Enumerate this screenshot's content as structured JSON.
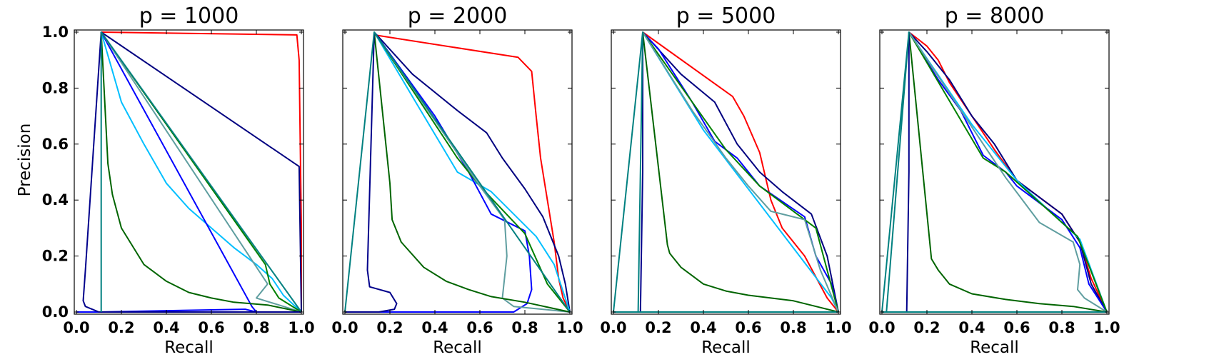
{
  "chart_data": [
    {
      "type": "line",
      "title": "p = 1000",
      "xlabel": "Recall",
      "ylabel": "Precision",
      "xlim": [
        0,
        1
      ],
      "ylim": [
        0,
        1
      ],
      "xticks": [
        "0.0",
        "0.2",
        "0.4",
        "0.6",
        "0.8",
        "1.0"
      ],
      "yticks": [
        "0.0",
        "0.2",
        "0.4",
        "0.6",
        "0.8",
        "1.0"
      ],
      "series": [
        {
          "color": "#ff0000",
          "x": [
            0.11,
            0.98,
            0.99,
            1.0,
            1.0
          ],
          "y": [
            1.0,
            0.99,
            0.9,
            0.3,
            0.0
          ]
        },
        {
          "color": "#000080",
          "x": [
            0.11,
            0.99,
            1.0
          ],
          "y": [
            1.0,
            0.52,
            0.0
          ]
        },
        {
          "color": "#00bfff",
          "x": [
            0.11,
            0.2,
            0.3,
            0.4,
            0.5,
            0.6,
            0.7,
            0.8,
            0.87,
            0.92,
            1.0
          ],
          "y": [
            1.0,
            0.75,
            0.6,
            0.46,
            0.37,
            0.3,
            0.23,
            0.17,
            0.12,
            0.06,
            0.0
          ]
        },
        {
          "color": "#0000ff",
          "x": [
            0.11,
            0.78,
            0.8,
            0.75,
            0.1,
            0.0
          ],
          "y": [
            1.0,
            0.02,
            0.0,
            0.01,
            0.0,
            0.0
          ]
        },
        {
          "color": "#008000",
          "x": [
            0.11,
            0.84,
            0.86,
            0.9,
            1.0
          ],
          "y": [
            1.0,
            0.17,
            0.1,
            0.05,
            0.0
          ]
        },
        {
          "color": "#5f9ea0",
          "x": [
            0.11,
            0.85,
            0.8,
            0.88,
            1.0
          ],
          "y": [
            1.0,
            0.1,
            0.05,
            0.03,
            0.0
          ]
        },
        {
          "color": "#006400",
          "x": [
            0.11,
            0.14,
            0.16,
            0.2,
            0.3,
            0.4,
            0.5,
            0.6,
            0.7,
            0.85,
            1.0
          ],
          "y": [
            1.0,
            0.53,
            0.42,
            0.3,
            0.17,
            0.11,
            0.07,
            0.05,
            0.035,
            0.025,
            0.0
          ]
        },
        {
          "color": "#00008b",
          "x": [
            0.11,
            0.04,
            0.03,
            0.04,
            0.1,
            0.4,
            1.0
          ],
          "y": [
            1.0,
            0.15,
            0.04,
            0.02,
            0.0,
            0.0,
            0.0
          ]
        },
        {
          "color": "#008080",
          "x": [
            0.11,
            0.11,
            0.11,
            1.0
          ],
          "y": [
            0.0,
            1.0,
            1.0,
            0.0
          ]
        }
      ]
    },
    {
      "type": "line",
      "title": "p = 2000",
      "xlabel": "Recall",
      "xlim": [
        0,
        1
      ],
      "ylim": [
        0,
        1
      ],
      "xticks": [
        "0.0",
        "0.2",
        "0.4",
        "0.6",
        "0.8",
        "1.0"
      ],
      "series": [
        {
          "color": "#ff0000",
          "x": [
            0.13,
            0.77,
            0.83,
            0.85,
            0.87,
            0.9,
            0.93,
            0.95,
            0.97,
            1.0
          ],
          "y": [
            0.99,
            0.91,
            0.86,
            0.7,
            0.55,
            0.4,
            0.25,
            0.12,
            0.05,
            0.0
          ]
        },
        {
          "color": "#000080",
          "x": [
            0.13,
            0.3,
            0.5,
            0.63,
            0.7,
            0.8,
            0.88,
            0.95,
            0.98,
            1.0
          ],
          "y": [
            1.0,
            0.85,
            0.72,
            0.64,
            0.55,
            0.44,
            0.34,
            0.2,
            0.1,
            0.0
          ]
        },
        {
          "color": "#00bfff",
          "x": [
            0.13,
            0.3,
            0.5,
            0.65,
            0.75,
            0.85,
            0.93,
            1.0
          ],
          "y": [
            1.0,
            0.77,
            0.5,
            0.43,
            0.35,
            0.27,
            0.17,
            0.0
          ]
        },
        {
          "color": "#0000ff",
          "x": [
            0.13,
            0.4,
            0.55,
            0.65,
            0.8,
            0.82,
            0.83,
            0.81,
            0.75,
            0.0
          ],
          "y": [
            1.0,
            0.7,
            0.5,
            0.35,
            0.29,
            0.2,
            0.08,
            0.03,
            0.0,
            0.0
          ]
        },
        {
          "color": "#008000",
          "x": [
            0.13,
            0.5,
            0.6,
            0.8,
            0.9,
            1.0
          ],
          "y": [
            1.0,
            0.55,
            0.45,
            0.28,
            0.1,
            0.0
          ]
        },
        {
          "color": "#5f9ea0",
          "x": [
            0.13,
            0.6,
            0.71,
            0.72,
            0.7,
            0.75,
            1.0
          ],
          "y": [
            1.0,
            0.45,
            0.33,
            0.2,
            0.05,
            0.02,
            0.0
          ]
        },
        {
          "color": "#006400",
          "x": [
            0.13,
            0.2,
            0.21,
            0.25,
            0.35,
            0.45,
            0.55,
            0.65,
            0.8,
            1.0
          ],
          "y": [
            1.0,
            0.46,
            0.33,
            0.25,
            0.16,
            0.11,
            0.08,
            0.055,
            0.035,
            0.0
          ]
        },
        {
          "color": "#00008b",
          "x": [
            0.13,
            0.1,
            0.11,
            0.2,
            0.23,
            0.22,
            0.15,
            0.0
          ],
          "y": [
            1.0,
            0.15,
            0.09,
            0.07,
            0.03,
            0.01,
            0.0,
            0.0
          ]
        },
        {
          "color": "#008080",
          "x": [
            0.0,
            0.13,
            1.0
          ],
          "y": [
            0.0,
            1.0,
            0.0
          ]
        }
      ]
    },
    {
      "type": "line",
      "title": "p = 5000",
      "xlabel": "Recall",
      "xlim": [
        0,
        1
      ],
      "ylim": [
        0,
        1
      ],
      "xticks": [
        "0.0",
        "0.2",
        "0.4",
        "0.6",
        "0.8",
        "1.0"
      ],
      "series": [
        {
          "color": "#ff0000",
          "x": [
            0.13,
            0.53,
            0.58,
            0.65,
            0.7,
            0.75,
            0.85,
            0.95,
            1.0
          ],
          "y": [
            1.0,
            0.77,
            0.7,
            0.57,
            0.4,
            0.3,
            0.2,
            0.05,
            0.0
          ]
        },
        {
          "color": "#000080",
          "x": [
            0.13,
            0.3,
            0.45,
            0.55,
            0.65,
            0.75,
            0.88,
            0.95,
            1.0
          ],
          "y": [
            1.0,
            0.85,
            0.75,
            0.6,
            0.5,
            0.43,
            0.35,
            0.2,
            0.0
          ]
        },
        {
          "color": "#00bfff",
          "x": [
            0.13,
            0.4,
            0.97,
            1.0
          ],
          "y": [
            1.0,
            0.65,
            0.05,
            0.0
          ]
        },
        {
          "color": "#0000ff",
          "x": [
            0.13,
            0.2,
            0.35,
            0.45,
            0.55,
            0.65,
            0.85,
            0.9,
            0.97,
            1.0
          ],
          "y": [
            1.0,
            0.94,
            0.75,
            0.61,
            0.55,
            0.45,
            0.34,
            0.2,
            0.1,
            0.0
          ]
        },
        {
          "color": "#008000",
          "x": [
            0.13,
            0.5,
            0.65,
            0.9,
            1.0
          ],
          "y": [
            1.0,
            0.58,
            0.45,
            0.3,
            0.0
          ]
        },
        {
          "color": "#5f9ea0",
          "x": [
            0.13,
            0.35,
            0.5,
            0.6,
            0.7,
            0.85,
            0.92,
            1.0
          ],
          "y": [
            1.0,
            0.72,
            0.55,
            0.45,
            0.36,
            0.33,
            0.15,
            0.0
          ]
        },
        {
          "color": "#006400",
          "x": [
            0.13,
            0.24,
            0.25,
            0.3,
            0.4,
            0.5,
            0.6,
            0.8,
            1.0
          ],
          "y": [
            1.0,
            0.24,
            0.21,
            0.16,
            0.1,
            0.075,
            0.06,
            0.04,
            0.0
          ]
        },
        {
          "color": "#00008b",
          "x": [
            0.13,
            0.13,
            0.12,
            0.0,
            1.0
          ],
          "y": [
            1.0,
            0.5,
            0.0,
            0.0,
            0.0
          ]
        },
        {
          "color": "#008080",
          "x": [
            0.11,
            0.13,
            0.0,
            1.0
          ],
          "y": [
            0.0,
            1.0,
            0.0,
            0.0
          ]
        }
      ]
    },
    {
      "type": "line",
      "title": "p = 8000",
      "xlabel": "Recall",
      "xlim": [
        0,
        1
      ],
      "ylim": [
        0,
        1
      ],
      "xticks": [
        "0.0",
        "0.2",
        "0.4",
        "0.6",
        "0.8",
        "1.0"
      ],
      "series": [
        {
          "color": "#ff0000",
          "x": [
            0.12,
            0.2,
            0.25,
            0.3,
            0.4,
            0.5,
            0.6,
            0.8,
            0.88,
            0.93,
            1.0
          ],
          "y": [
            1.0,
            0.95,
            0.9,
            0.82,
            0.7,
            0.58,
            0.47,
            0.35,
            0.25,
            0.12,
            0.0
          ]
        },
        {
          "color": "#000080",
          "x": [
            0.12,
            0.2,
            0.3,
            0.4,
            0.5,
            0.6,
            0.8,
            0.88,
            0.93,
            1.0
          ],
          "y": [
            1.0,
            0.93,
            0.83,
            0.7,
            0.6,
            0.47,
            0.35,
            0.25,
            0.1,
            0.0
          ]
        },
        {
          "color": "#00bfff",
          "x": [
            0.12,
            0.4,
            0.6,
            0.88,
            1.0
          ],
          "y": [
            1.0,
            0.67,
            0.47,
            0.26,
            0.0
          ]
        },
        {
          "color": "#0000ff",
          "x": [
            0.12,
            0.25,
            0.35,
            0.45,
            0.55,
            0.6,
            0.8,
            0.88,
            0.92,
            1.0
          ],
          "y": [
            1.0,
            0.83,
            0.72,
            0.56,
            0.5,
            0.45,
            0.33,
            0.23,
            0.1,
            0.0
          ]
        },
        {
          "color": "#008000",
          "x": [
            0.12,
            0.45,
            0.55,
            0.87,
            1.0
          ],
          "y": [
            1.0,
            0.55,
            0.5,
            0.27,
            0.0
          ]
        },
        {
          "color": "#5f9ea0",
          "x": [
            0.12,
            0.45,
            0.55,
            0.7,
            0.85,
            0.88,
            0.87,
            0.9,
            1.0
          ],
          "y": [
            1.0,
            0.6,
            0.48,
            0.32,
            0.25,
            0.17,
            0.08,
            0.05,
            0.0
          ]
        },
        {
          "color": "#006400",
          "x": [
            0.12,
            0.22,
            0.25,
            0.3,
            0.4,
            0.55,
            0.7,
            0.85,
            1.0
          ],
          "y": [
            1.0,
            0.19,
            0.15,
            0.1,
            0.065,
            0.045,
            0.03,
            0.02,
            0.0
          ]
        },
        {
          "color": "#00008b",
          "x": [
            0.12,
            0.12,
            0.11,
            0.0,
            1.0
          ],
          "y": [
            1.0,
            0.5,
            0.0,
            0.0,
            0.0
          ]
        },
        {
          "color": "#008080",
          "x": [
            0.02,
            0.12,
            0.0,
            1.0
          ],
          "y": [
            0.0,
            1.0,
            0.0,
            0.0
          ]
        }
      ]
    }
  ]
}
